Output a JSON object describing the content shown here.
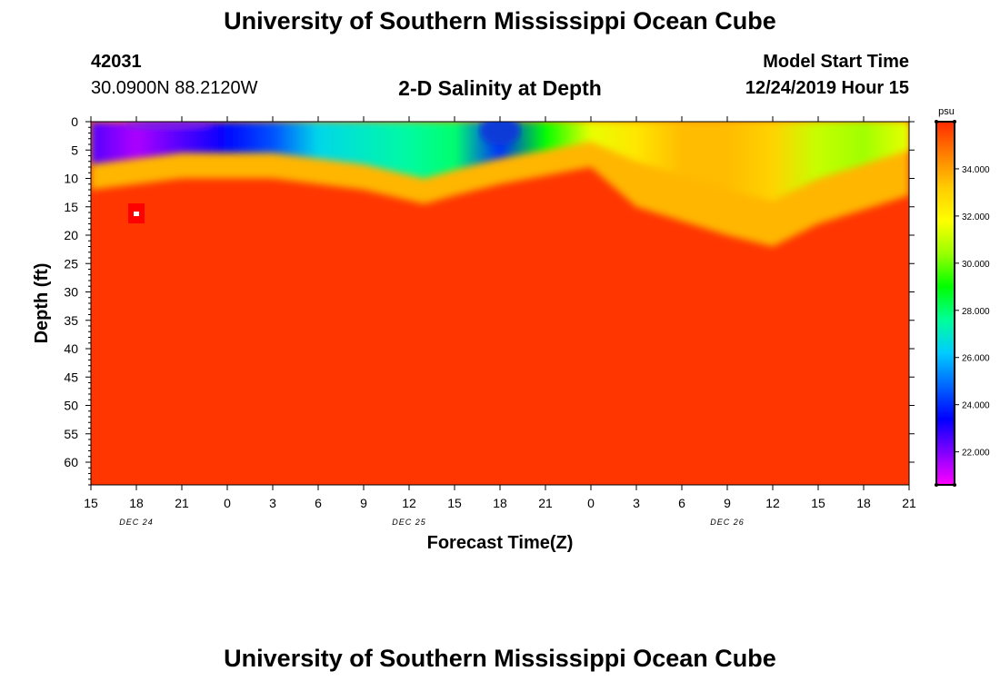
{
  "page": {
    "title_top": "University of Southern Mississippi Ocean Cube",
    "title_bottom": "University of Southern Mississippi Ocean Cube"
  },
  "station": {
    "id": "42031",
    "coords": "30.0900N 88.2120W"
  },
  "header": {
    "model_start_label": "Model Start Time",
    "model_start_value": "12/24/2019 Hour 15"
  },
  "colors": {
    "background": "#ffffff",
    "scale": [
      "#ff00ff",
      "#8000ff",
      "#0000ff",
      "#0066ff",
      "#00ccff",
      "#00ff99",
      "#00ff00",
      "#99ff00",
      "#ffff00",
      "#ffcc00",
      "#ff8000",
      "#ff2a00"
    ]
  },
  "chart_data": {
    "type": "heatmap",
    "title": "2-D Salinity at Depth",
    "xlabel": "Forecast Time(Z)",
    "ylabel": "Depth (ft)",
    "x_tick_labels": [
      "15",
      "18",
      "21",
      "0",
      "3",
      "6",
      "9",
      "12",
      "15",
      "18",
      "21",
      "0",
      "3",
      "6",
      "9",
      "12",
      "15",
      "18",
      "21"
    ],
    "x_hours_from_start": [
      0,
      3,
      6,
      9,
      12,
      15,
      18,
      21,
      24,
      27,
      30,
      33,
      36,
      39,
      42,
      45,
      48,
      51,
      54
    ],
    "date_labels": [
      {
        "text": "DEC 24",
        "hour": 3
      },
      {
        "text": "DEC 25",
        "hour": 21
      },
      {
        "text": "DEC 26",
        "hour": 42
      }
    ],
    "y_ticks": [
      0,
      5,
      10,
      15,
      20,
      25,
      30,
      35,
      40,
      45,
      50,
      55,
      60
    ],
    "ylim": [
      0,
      64
    ],
    "xlim": [
      0,
      54
    ],
    "colorbar": {
      "unit": "psu",
      "min": 20.6,
      "max": 36.0,
      "tick_values": [
        22,
        24,
        26,
        28,
        30,
        32,
        34
      ],
      "tick_labels": [
        "22.000",
        "24.000",
        "26.000",
        "28.000",
        "30.000",
        "32.000",
        "34.000"
      ]
    },
    "surface_salinity_psu": [
      {
        "hour": 0,
        "value": 22.5
      },
      {
        "hour": 3,
        "value": 21.5
      },
      {
        "hour": 6,
        "value": 22.5
      },
      {
        "hour": 9,
        "value": 23.5
      },
      {
        "hour": 12,
        "value": 24.5
      },
      {
        "hour": 15,
        "value": 26.5
      },
      {
        "hour": 18,
        "value": 27.0
      },
      {
        "hour": 21,
        "value": 27.5
      },
      {
        "hour": 24,
        "value": 28.0
      },
      {
        "hour": 27,
        "value": 24.0
      },
      {
        "hour": 30,
        "value": 29.0
      },
      {
        "hour": 33,
        "value": 31.5
      },
      {
        "hour": 36,
        "value": 32.5
      },
      {
        "hour": 39,
        "value": 33.5
      },
      {
        "hour": 42,
        "value": 33.5
      },
      {
        "hour": 45,
        "value": 33.0
      },
      {
        "hour": 48,
        "value": 31.0
      },
      {
        "hour": 51,
        "value": 30.5
      },
      {
        "hour": 54,
        "value": 31.5
      }
    ],
    "halocline_depth_ft": [
      {
        "hour": 0,
        "value": 10
      },
      {
        "hour": 6,
        "value": 8
      },
      {
        "hour": 12,
        "value": 8
      },
      {
        "hour": 15,
        "value": 9
      },
      {
        "hour": 18,
        "value": 10
      },
      {
        "hour": 22,
        "value": 12.5
      },
      {
        "hour": 24,
        "value": 11
      },
      {
        "hour": 27,
        "value": 9
      },
      {
        "hour": 33,
        "value": 6
      },
      {
        "hour": 36,
        "value": 13
      },
      {
        "hour": 42,
        "value": 18
      },
      {
        "hour": 45,
        "value": 20
      },
      {
        "hour": 48,
        "value": 16
      },
      {
        "hour": 54,
        "value": 11
      }
    ],
    "deep_salinity_psu": 35.8
  }
}
